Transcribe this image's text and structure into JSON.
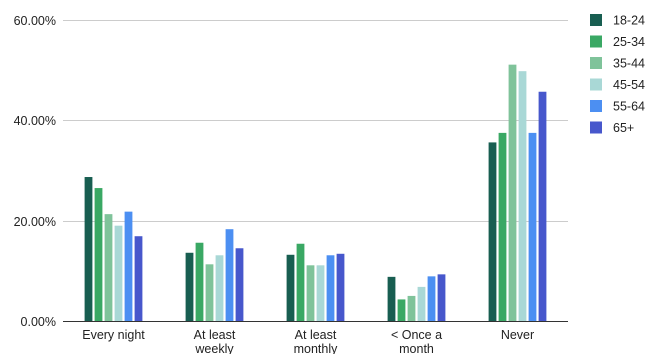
{
  "chart_data": {
    "type": "bar",
    "categories": [
      [
        "Every night"
      ],
      [
        "At least",
        "weekly"
      ],
      [
        "At least",
        "monthly"
      ],
      [
        "< Once a",
        "month"
      ],
      [
        "Never"
      ]
    ],
    "series": [
      {
        "name": "18-24",
        "color": "#185e51",
        "values": [
          28.7,
          13.6,
          13.2,
          8.8,
          35.6
        ]
      },
      {
        "name": "25-34",
        "color": "#3aa864",
        "values": [
          26.5,
          15.6,
          15.4,
          4.3,
          37.5
        ]
      },
      {
        "name": "35-44",
        "color": "#7fc39a",
        "values": [
          21.3,
          11.3,
          11.1,
          5.0,
          51.1
        ]
      },
      {
        "name": "45-54",
        "color": "#a9d8d6",
        "values": [
          19.0,
          13.1,
          11.1,
          6.8,
          49.8
        ]
      },
      {
        "name": "55-64",
        "color": "#4c8ff2",
        "values": [
          21.8,
          18.3,
          13.1,
          8.9,
          37.5
        ]
      },
      {
        "name": "65+",
        "color": "#4757cc",
        "values": [
          16.9,
          14.5,
          13.4,
          9.3,
          45.7
        ]
      }
    ],
    "y_ticks": [
      "0.00%",
      "20.00%",
      "40.00%",
      "60.00%"
    ],
    "y_tick_values": [
      0,
      20,
      40,
      60
    ],
    "ylim": [
      0,
      60
    ],
    "grid": true,
    "legend_position": "right",
    "title": "",
    "xlabel": "",
    "ylabel": ""
  }
}
